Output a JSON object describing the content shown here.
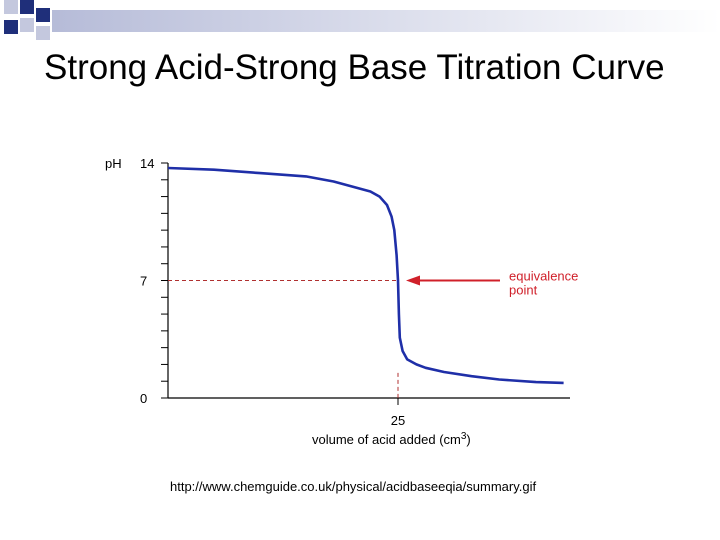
{
  "slide": {
    "title": "Strong Acid-Strong Base Titration Curve",
    "source_url": "http://www.chemguide.co.uk/physical/acidbaseeqia/summary.gif"
  },
  "colors": {
    "curve": "#1f2fa8",
    "arrow": "#d0202a",
    "axis": "#000000",
    "guide": "#b03030",
    "deco_dark": "#1f2f7a",
    "deco_light": "#c4c8de"
  },
  "chart_data": {
    "type": "line",
    "title": "",
    "xlabel": "volume of acid added (cm",
    "xlabel_superscript": "3",
    "xlabel_close": ")",
    "ylabel": "pH",
    "xlim": [
      0,
      45
    ],
    "ylim": [
      0,
      14
    ],
    "x_tick_labels": [
      {
        "value": 25,
        "label": "25"
      }
    ],
    "y_tick_labels": [
      {
        "value": 14,
        "label": "14"
      },
      {
        "value": 7,
        "label": "7"
      },
      {
        "value": 0,
        "label": "0"
      }
    ],
    "y_minor_ticks": [
      0,
      1,
      2,
      3,
      4,
      5,
      6,
      7,
      8,
      9,
      10,
      11,
      12,
      13,
      14
    ],
    "series": [
      {
        "values": [
          {
            "x": 0,
            "y": 13.7
          },
          {
            "x": 5,
            "y": 13.6
          },
          {
            "x": 10,
            "y": 13.4
          },
          {
            "x": 15,
            "y": 13.2
          },
          {
            "x": 18,
            "y": 12.9
          },
          {
            "x": 20,
            "y": 12.6
          },
          {
            "x": 22,
            "y": 12.3
          },
          {
            "x": 23,
            "y": 12.0
          },
          {
            "x": 23.8,
            "y": 11.5
          },
          {
            "x": 24.3,
            "y": 10.8
          },
          {
            "x": 24.6,
            "y": 10.0
          },
          {
            "x": 24.85,
            "y": 8.5
          },
          {
            "x": 25,
            "y": 7.0
          },
          {
            "x": 25.1,
            "y": 5.0
          },
          {
            "x": 25.2,
            "y": 3.6
          },
          {
            "x": 25.5,
            "y": 2.8
          },
          {
            "x": 26,
            "y": 2.3
          },
          {
            "x": 27,
            "y": 2.0
          },
          {
            "x": 28,
            "y": 1.8
          },
          {
            "x": 30,
            "y": 1.55
          },
          {
            "x": 33,
            "y": 1.3
          },
          {
            "x": 36,
            "y": 1.1
          },
          {
            "x": 40,
            "y": 0.95
          },
          {
            "x": 43,
            "y": 0.9
          }
        ]
      }
    ],
    "annotations": [
      {
        "text_lines": [
          "equivalence",
          "point"
        ],
        "points_to": {
          "x": 25,
          "y": 7
        }
      }
    ],
    "guides": {
      "horizontal_at_y": 7,
      "vertical_at_x": 25
    }
  }
}
